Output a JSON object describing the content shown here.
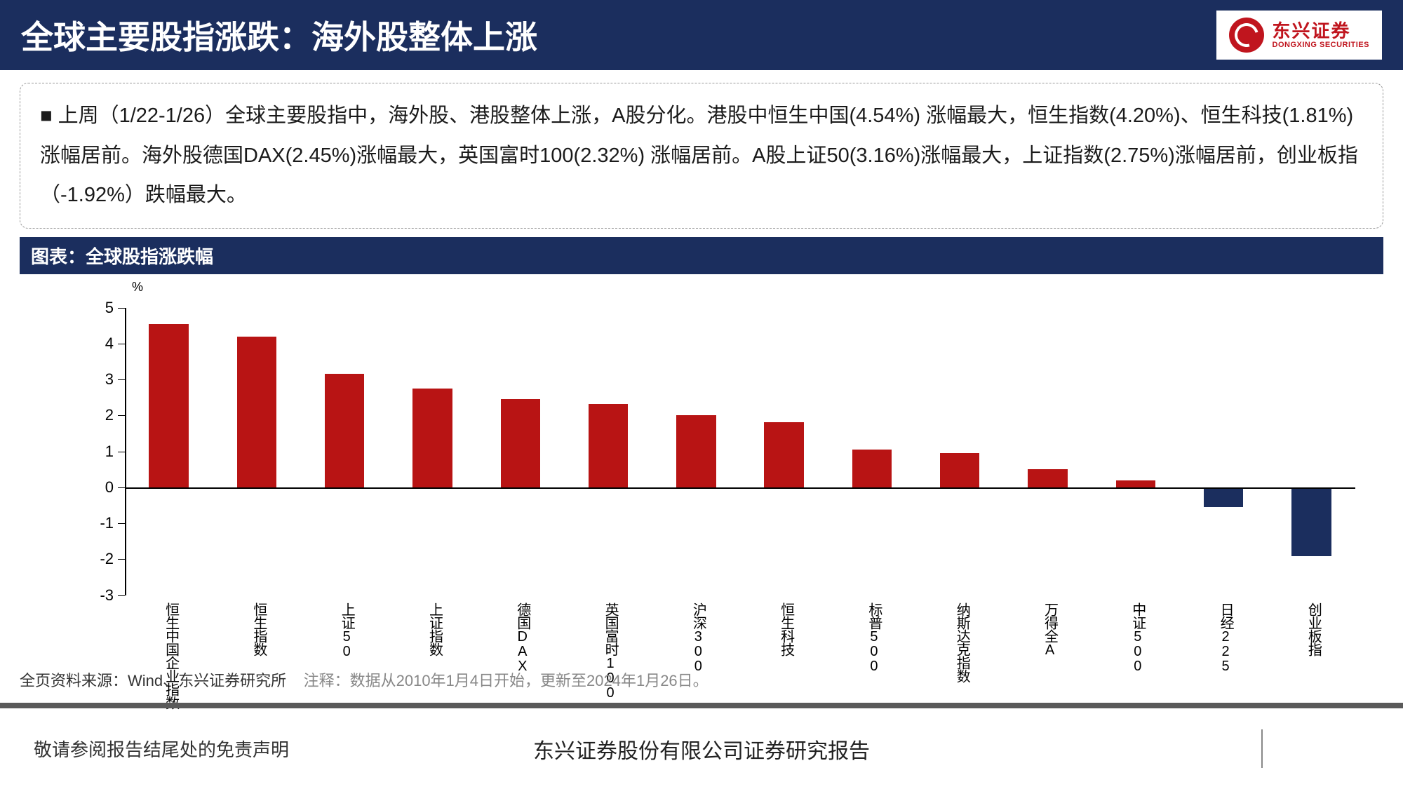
{
  "header": {
    "title": "全球主要股指涨跌：海外股整体上涨",
    "logo_cn": "东兴证券",
    "logo_en": "DONGXING SECURITIES"
  },
  "summary": {
    "text": "上周（1/22-1/26）全球主要股指中，海外股、港股整体上涨，A股分化。港股中恒生中国(4.54%) 涨幅最大，恒生指数(4.20%)、恒生科技(1.81%)涨幅居前。海外股德国DAX(2.45%)涨幅最大，英国富时100(2.32%) 涨幅居前。A股上证50(3.16%)涨幅最大，上证指数(2.75%)涨幅居前，创业板指（-1.92%）跌幅最大。"
  },
  "chart": {
    "header": "图表：全球股指涨跌幅",
    "type": "bar",
    "y_unit": "%",
    "ylim": [
      -3,
      5
    ],
    "yticks": [
      -3,
      -2,
      -1,
      0,
      1,
      2,
      3,
      4,
      5
    ],
    "categories": [
      "恒生中国企业指数",
      "恒生指数",
      "上证50",
      "上证指数",
      "德国DAX",
      "英国富时100",
      "沪深300",
      "恒生科技",
      "标普500",
      "纳斯达克指数",
      "万得全A",
      "中证500",
      "日经225",
      "创业板指"
    ],
    "values": [
      4.54,
      4.2,
      3.16,
      2.75,
      2.45,
      2.32,
      2.0,
      1.81,
      1.05,
      0.95,
      0.5,
      0.2,
      -0.55,
      -1.92
    ],
    "positive_color": "#b81414",
    "negative_color": "#1b2e5e",
    "axis_color": "#000000",
    "bar_width_ratio": 0.45,
    "label_fontsize": 20,
    "tick_fontsize": 22
  },
  "footer": {
    "source": "全页资料来源：Wind、东兴证券研究所",
    "annotation": "注释：数据从2010年1月4日开始，更新至2024年1月26日。",
    "disclaimer": "敬请参阅报告结尾处的免责声明",
    "report_title": "东兴证券股份有限公司证券研究报告"
  }
}
